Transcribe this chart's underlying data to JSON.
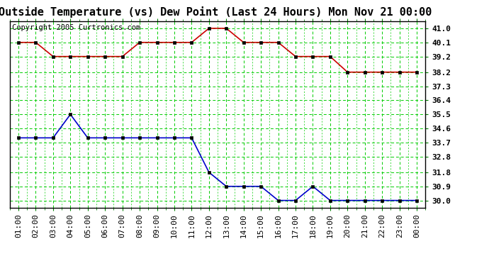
{
  "title": "Outside Temperature (vs) Dew Point (Last 24 Hours) Mon Nov 21 00:00",
  "copyright": "Copyright 2005 Curtronics.com",
  "x_labels": [
    "01:00",
    "02:00",
    "03:00",
    "04:00",
    "05:00",
    "06:00",
    "07:00",
    "08:00",
    "09:00",
    "10:00",
    "11:00",
    "12:00",
    "13:00",
    "14:00",
    "15:00",
    "16:00",
    "17:00",
    "18:00",
    "19:00",
    "20:00",
    "21:00",
    "22:00",
    "23:00",
    "00:00"
  ],
  "temp_data": [
    40.1,
    40.1,
    39.2,
    39.2,
    39.2,
    39.2,
    39.2,
    40.1,
    40.1,
    40.1,
    40.1,
    41.0,
    41.0,
    40.1,
    40.1,
    40.1,
    39.2,
    39.2,
    39.2,
    38.2,
    38.2,
    38.2,
    38.2,
    38.2
  ],
  "dew_data": [
    34.0,
    34.0,
    34.0,
    35.5,
    34.0,
    34.0,
    34.0,
    34.0,
    34.0,
    34.0,
    34.0,
    31.8,
    30.9,
    30.9,
    30.9,
    30.0,
    30.0,
    30.9,
    30.0,
    30.0,
    30.0,
    30.0,
    30.0,
    30.0
  ],
  "temp_color": "#cc0000",
  "dew_color": "#0000cc",
  "grid_color": "#00cc00",
  "bg_color": "#ffffff",
  "ylim": [
    29.55,
    41.45
  ],
  "yticks": [
    30.0,
    30.9,
    31.8,
    32.8,
    33.7,
    34.6,
    35.5,
    36.4,
    37.3,
    38.2,
    39.2,
    40.1,
    41.0
  ],
  "title_fontsize": 11,
  "tick_fontsize": 8,
  "copyright_fontsize": 7.5
}
